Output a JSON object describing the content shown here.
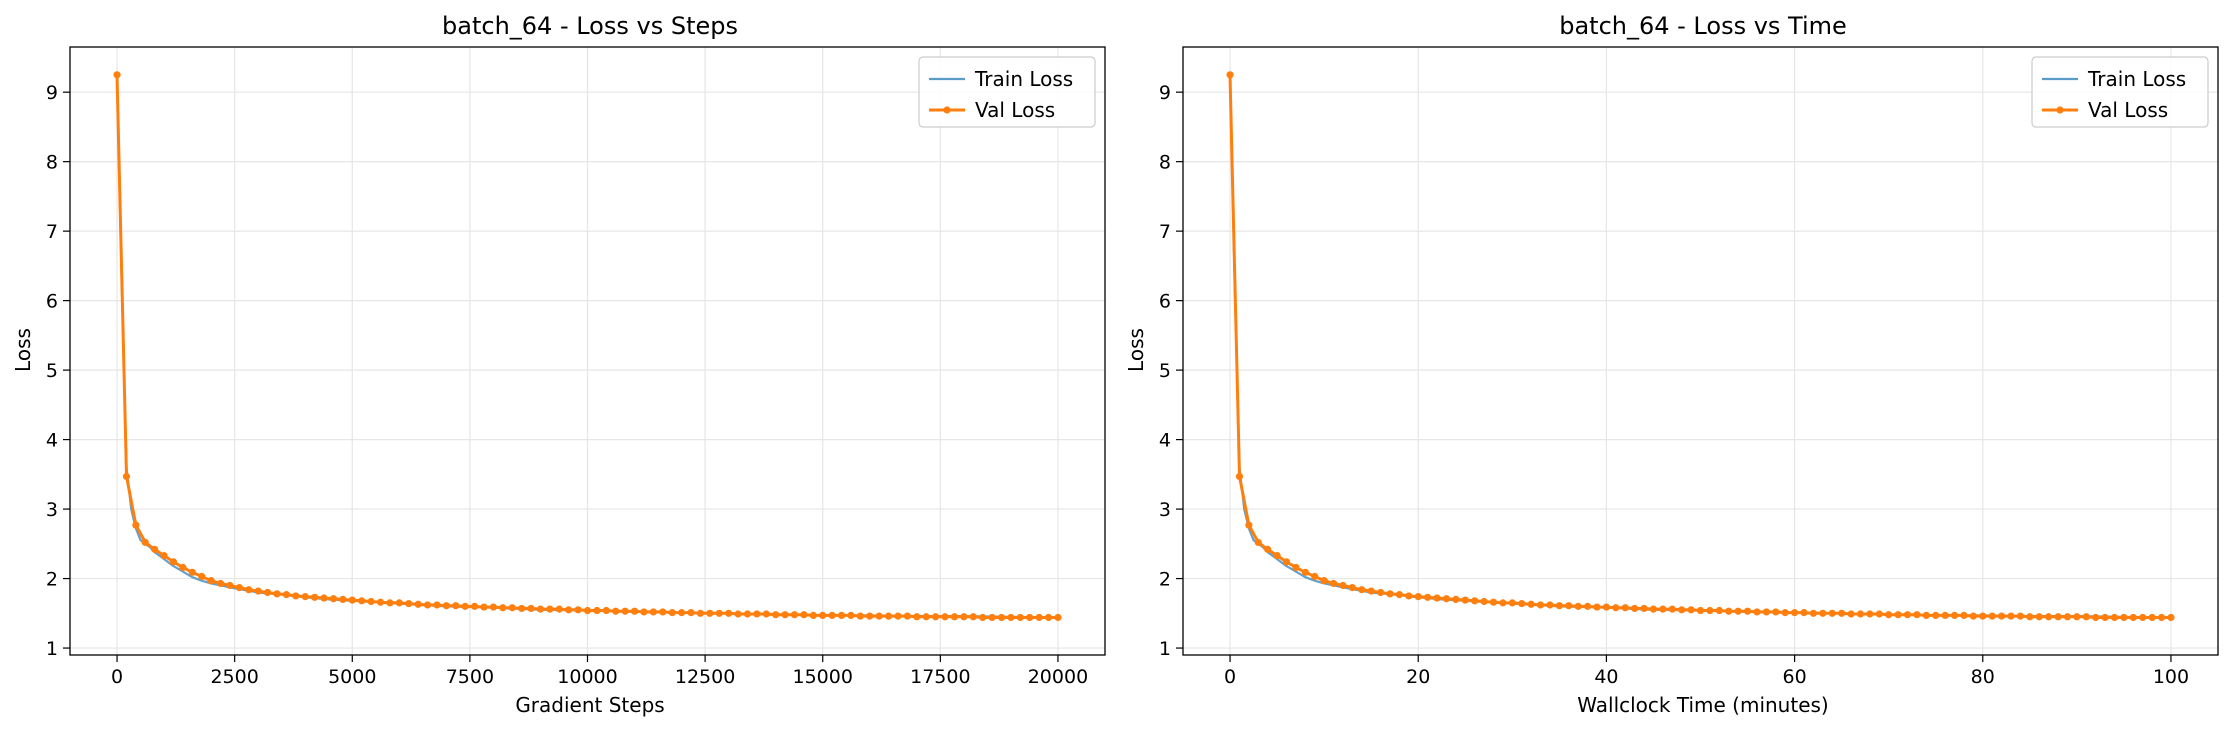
{
  "chart_data": [
    {
      "type": "line",
      "title": "batch_64 - Loss vs Steps",
      "xlabel": "Gradient Steps",
      "ylabel": "Loss",
      "xlim": [
        -1000,
        21000
      ],
      "ylim": [
        0.9,
        9.65
      ],
      "xticks": [
        0,
        2500,
        5000,
        7500,
        10000,
        12500,
        15000,
        17500,
        20000
      ],
      "yticks": [
        1,
        2,
        3,
        4,
        5,
        6,
        7,
        8,
        9
      ],
      "grid": true,
      "legend_position": "top-right",
      "series": [
        {
          "name": "Train Loss",
          "color": "#5b9bc8",
          "x": [
            0,
            100,
            200,
            300,
            400,
            500,
            600,
            700,
            800,
            900,
            1000,
            1200,
            1400,
            1600,
            1800,
            2000,
            2500,
            3000,
            3500,
            4000,
            4500,
            5000,
            6000,
            7000,
            8000,
            9000,
            10000,
            11000,
            12000,
            13000,
            14000,
            15000,
            16000,
            17000,
            18000,
            19000,
            20000
          ],
          "y": [
            9.25,
            6.2,
            3.6,
            3.0,
            2.72,
            2.55,
            2.5,
            2.45,
            2.38,
            2.33,
            2.28,
            2.18,
            2.1,
            2.02,
            1.97,
            1.93,
            1.86,
            1.8,
            1.77,
            1.73,
            1.7,
            1.68,
            1.64,
            1.6,
            1.58,
            1.55,
            1.54,
            1.52,
            1.51,
            1.5,
            1.48,
            1.47,
            1.47,
            1.46,
            1.46,
            1.45,
            1.44
          ]
        },
        {
          "name": "Val Loss",
          "color": "#ff7f0e",
          "x": [
            0,
            200,
            400,
            600,
            800,
            1000,
            1200,
            1400,
            1600,
            1800,
            2000,
            2200,
            2400,
            2600,
            2800,
            3000,
            3200,
            3400,
            3600,
            3800,
            4000,
            4200,
            4400,
            4600,
            4800,
            5000,
            5200,
            5400,
            5600,
            5800,
            6000,
            6200,
            6400,
            6600,
            6800,
            7000,
            7200,
            7400,
            7600,
            7800,
            8000,
            8200,
            8400,
            8600,
            8800,
            9000,
            9200,
            9400,
            9600,
            9800,
            10000,
            10200,
            10400,
            10600,
            10800,
            11000,
            11200,
            11400,
            11600,
            11800,
            12000,
            12200,
            12400,
            12600,
            12800,
            13000,
            13200,
            13400,
            13600,
            13800,
            14000,
            14200,
            14400,
            14600,
            14800,
            15000,
            15200,
            15400,
            15600,
            15800,
            16000,
            16200,
            16400,
            16600,
            16800,
            17000,
            17200,
            17400,
            17600,
            17800,
            18000,
            18200,
            18400,
            18600,
            18800,
            19000,
            19200,
            19400,
            19600,
            19800,
            20000
          ],
          "y": [
            9.25,
            3.47,
            2.77,
            2.52,
            2.42,
            2.33,
            2.24,
            2.16,
            2.09,
            2.03,
            1.97,
            1.93,
            1.9,
            1.87,
            1.84,
            1.82,
            1.8,
            1.78,
            1.77,
            1.75,
            1.74,
            1.73,
            1.72,
            1.71,
            1.7,
            1.69,
            1.68,
            1.67,
            1.66,
            1.65,
            1.65,
            1.64,
            1.63,
            1.62,
            1.62,
            1.61,
            1.61,
            1.6,
            1.6,
            1.59,
            1.59,
            1.58,
            1.58,
            1.57,
            1.57,
            1.56,
            1.56,
            1.56,
            1.55,
            1.55,
            1.54,
            1.54,
            1.54,
            1.53,
            1.53,
            1.53,
            1.52,
            1.52,
            1.52,
            1.51,
            1.51,
            1.51,
            1.5,
            1.5,
            1.5,
            1.5,
            1.49,
            1.49,
            1.49,
            1.49,
            1.48,
            1.48,
            1.48,
            1.48,
            1.47,
            1.47,
            1.47,
            1.47,
            1.47,
            1.46,
            1.46,
            1.46,
            1.46,
            1.46,
            1.46,
            1.45,
            1.45,
            1.45,
            1.45,
            1.45,
            1.45,
            1.45,
            1.44,
            1.44,
            1.44,
            1.44,
            1.44,
            1.44,
            1.44,
            1.44,
            1.44
          ]
        }
      ]
    },
    {
      "type": "line",
      "title": "batch_64 - Loss vs Time",
      "xlabel": "Wallclock Time (minutes)",
      "ylabel": "Loss",
      "xlim": [
        -5,
        105
      ],
      "ylim": [
        0.9,
        9.65
      ],
      "xticks": [
        0,
        20,
        40,
        60,
        80,
        100
      ],
      "yticks": [
        1,
        2,
        3,
        4,
        5,
        6,
        7,
        8,
        9
      ],
      "grid": true,
      "legend_position": "top-right",
      "series": [
        {
          "name": "Train Loss",
          "color": "#5b9bc8",
          "x": [
            0,
            0.5,
            1,
            1.5,
            2,
            2.5,
            3,
            3.5,
            4,
            4.5,
            5,
            6,
            7,
            8,
            9,
            10,
            12.5,
            15,
            17.5,
            20,
            22.5,
            25,
            30,
            35,
            40,
            45,
            50,
            55,
            60,
            65,
            70,
            75,
            80,
            85,
            90,
            95,
            100
          ],
          "y": [
            9.25,
            6.2,
            3.6,
            3.0,
            2.72,
            2.55,
            2.5,
            2.45,
            2.38,
            2.33,
            2.28,
            2.18,
            2.1,
            2.02,
            1.97,
            1.93,
            1.86,
            1.8,
            1.77,
            1.73,
            1.7,
            1.68,
            1.64,
            1.6,
            1.58,
            1.55,
            1.54,
            1.52,
            1.51,
            1.5,
            1.48,
            1.47,
            1.47,
            1.46,
            1.46,
            1.45,
            1.44
          ]
        },
        {
          "name": "Val Loss",
          "color": "#ff7f0e",
          "x": [
            0,
            1,
            2,
            3,
            4,
            5,
            6,
            7,
            8,
            9,
            10,
            11,
            12,
            13,
            14,
            15,
            16,
            17,
            18,
            19,
            20,
            21,
            22,
            23,
            24,
            25,
            26,
            27,
            28,
            29,
            30,
            31,
            32,
            33,
            34,
            35,
            36,
            37,
            38,
            39,
            40,
            41,
            42,
            43,
            44,
            45,
            46,
            47,
            48,
            49,
            50,
            51,
            52,
            53,
            54,
            55,
            56,
            57,
            58,
            59,
            60,
            61,
            62,
            63,
            64,
            65,
            66,
            67,
            68,
            69,
            70,
            71,
            72,
            73,
            74,
            75,
            76,
            77,
            78,
            79,
            80,
            81,
            82,
            83,
            84,
            85,
            86,
            87,
            88,
            89,
            90,
            91,
            92,
            93,
            94,
            95,
            96,
            97,
            98,
            99,
            100
          ],
          "y": [
            9.25,
            3.47,
            2.77,
            2.52,
            2.42,
            2.33,
            2.24,
            2.16,
            2.09,
            2.03,
            1.97,
            1.93,
            1.9,
            1.87,
            1.84,
            1.82,
            1.8,
            1.78,
            1.77,
            1.75,
            1.74,
            1.73,
            1.72,
            1.71,
            1.7,
            1.69,
            1.68,
            1.67,
            1.66,
            1.65,
            1.65,
            1.64,
            1.63,
            1.62,
            1.62,
            1.61,
            1.61,
            1.6,
            1.6,
            1.59,
            1.59,
            1.58,
            1.58,
            1.57,
            1.57,
            1.56,
            1.56,
            1.56,
            1.55,
            1.55,
            1.54,
            1.54,
            1.54,
            1.53,
            1.53,
            1.53,
            1.52,
            1.52,
            1.52,
            1.51,
            1.51,
            1.51,
            1.5,
            1.5,
            1.5,
            1.5,
            1.49,
            1.49,
            1.49,
            1.49,
            1.48,
            1.48,
            1.48,
            1.48,
            1.47,
            1.47,
            1.47,
            1.47,
            1.47,
            1.46,
            1.46,
            1.46,
            1.46,
            1.46,
            1.46,
            1.45,
            1.45,
            1.45,
            1.45,
            1.45,
            1.45,
            1.45,
            1.44,
            1.44,
            1.44,
            1.44,
            1.44,
            1.44,
            1.44,
            1.44,
            1.44
          ]
        }
      ]
    }
  ]
}
